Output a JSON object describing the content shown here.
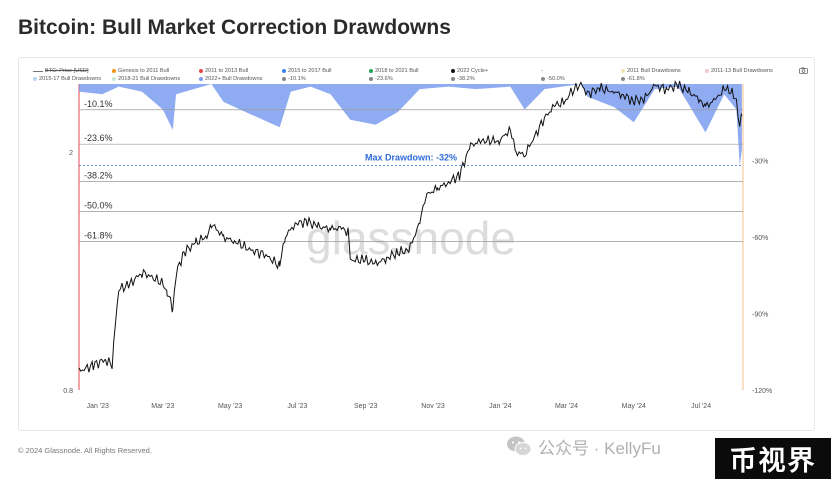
{
  "title": "Bitcoin: Bull Market Correction Drawdowns",
  "legend": [
    {
      "label": "BTC: Price [USD]",
      "color": "#777777",
      "kind": "line",
      "struck": true
    },
    {
      "label": "Genesis to 2011 Bull",
      "color": "#f7931a",
      "kind": "dot"
    },
    {
      "label": "2011 to 2013 Bull",
      "color": "#e8474c",
      "kind": "dot"
    },
    {
      "label": "2015 to 2017 Bull",
      "color": "#3b82f6",
      "kind": "dot"
    },
    {
      "label": "2018 to 2021 Bull",
      "color": "#22a35a",
      "kind": "dot"
    },
    {
      "label": "2022 Cycle+",
      "color": "#111111",
      "kind": "dot"
    },
    {
      "label": "-",
      "color": "#cccccc",
      "kind": "text"
    },
    {
      "label": "2011 Bull Drawdowns",
      "color": "#f6e0b8",
      "kind": "dot"
    },
    {
      "label": "2011-13 Bull Drawdowns",
      "color": "#f5c6cc",
      "kind": "dot"
    },
    {
      "label": "2015-17 Bull Drawdowns",
      "color": "#bcd4f7",
      "kind": "dot"
    },
    {
      "label": "2018-21 Bull Drawdowns",
      "color": "#c9e9d3",
      "kind": "dot"
    },
    {
      "label": "2022+ Bull Drawdowns",
      "color": "#7b9cf0",
      "kind": "dot"
    },
    {
      "label": "-10.1%",
      "color": "#888888",
      "kind": "dot"
    },
    {
      "label": "-23.6%",
      "color": "#888888",
      "kind": "dot"
    },
    {
      "label": "-38.2%",
      "color": "#888888",
      "kind": "dot"
    },
    {
      "label": "-50.0%",
      "color": "#888888",
      "kind": "dot"
    },
    {
      "label": "-61.8%",
      "color": "#888888",
      "kind": "dot"
    },
    {
      "label": "-",
      "color": "#cccccc",
      "kind": "text"
    }
  ],
  "chart_data": {
    "type": "line",
    "title": "Bitcoin: Bull Market Correction Drawdowns",
    "watermark": "glassnode",
    "x_axis": {
      "ticks": [
        "Jan '23",
        "Mar '23",
        "May '23",
        "Jul '23",
        "Sep '23",
        "Nov '23",
        "Jan '24",
        "Mar '24",
        "May '24",
        "Jul '24"
      ],
      "range": [
        "2022-12-15",
        "2024-08-08"
      ]
    },
    "y_left": {
      "scale": "log",
      "ticks": [
        "2",
        "0.8"
      ],
      "range": [
        0.8,
        2.6
      ]
    },
    "y_right": {
      "ticks": [
        "-30%",
        "-60%",
        "-90%",
        "-120%"
      ],
      "range": [
        0,
        -120
      ]
    },
    "fib_levels": [
      {
        "label": "-10.1%",
        "value": -10.1
      },
      {
        "label": "-23.6%",
        "value": -23.6
      },
      {
        "label": "-38.2%",
        "value": -38.2
      },
      {
        "label": "-50.0%",
        "value": -50.0
      },
      {
        "label": "-61.8%",
        "value": -61.8
      }
    ],
    "annotation": {
      "text": "Max Drawdown: -32%",
      "value": -32
    },
    "series": [
      {
        "name": "2022 Cycle+",
        "color": "#111111",
        "points": [
          [
            "2022-12-15",
            0.86
          ],
          [
            "2022-12-28",
            0.88
          ],
          [
            "2023-01-08",
            0.9
          ],
          [
            "2023-01-14",
            0.88
          ],
          [
            "2023-01-20",
            1.18
          ],
          [
            "2023-01-30",
            1.2
          ],
          [
            "2023-02-10",
            1.26
          ],
          [
            "2023-02-28",
            1.21
          ],
          [
            "2023-03-05",
            1.17
          ],
          [
            "2023-03-10",
            1.09
          ],
          [
            "2023-03-13",
            1.25
          ],
          [
            "2023-03-20",
            1.36
          ],
          [
            "2023-03-31",
            1.41
          ],
          [
            "2023-04-10",
            1.45
          ],
          [
            "2023-04-14",
            1.52
          ],
          [
            "2023-04-25",
            1.44
          ],
          [
            "2023-05-05",
            1.42
          ],
          [
            "2023-05-20",
            1.37
          ],
          [
            "2023-06-01",
            1.35
          ],
          [
            "2023-06-15",
            1.29
          ],
          [
            "2023-06-20",
            1.45
          ],
          [
            "2023-06-30",
            1.52
          ],
          [
            "2023-07-10",
            1.53
          ],
          [
            "2023-07-20",
            1.5
          ],
          [
            "2023-07-31",
            1.49
          ],
          [
            "2023-08-10",
            1.49
          ],
          [
            "2023-08-16",
            1.47
          ],
          [
            "2023-08-18",
            1.32
          ],
          [
            "2023-08-31",
            1.32
          ],
          [
            "2023-09-10",
            1.3
          ],
          [
            "2023-09-20",
            1.33
          ],
          [
            "2023-09-30",
            1.36
          ],
          [
            "2023-10-10",
            1.37
          ],
          [
            "2023-10-20",
            1.52
          ],
          [
            "2023-10-25",
            1.69
          ],
          [
            "2023-11-05",
            1.74
          ],
          [
            "2023-11-15",
            1.78
          ],
          [
            "2023-11-25",
            1.83
          ],
          [
            "2023-12-05",
            2.05
          ],
          [
            "2023-12-15",
            2.09
          ],
          [
            "2023-12-31",
            2.09
          ],
          [
            "2024-01-10",
            2.18
          ],
          [
            "2024-01-15",
            2.0
          ],
          [
            "2024-01-23",
            1.98
          ],
          [
            "2024-02-01",
            2.12
          ],
          [
            "2024-02-10",
            2.28
          ],
          [
            "2024-02-20",
            2.4
          ],
          [
            "2024-02-28",
            2.42
          ],
          [
            "2024-03-05",
            2.52
          ],
          [
            "2024-03-14",
            2.6
          ],
          [
            "2024-03-20",
            2.5
          ],
          [
            "2024-03-31",
            2.56
          ],
          [
            "2024-04-13",
            2.52
          ],
          [
            "2024-04-20",
            2.5
          ],
          [
            "2024-04-30",
            2.44
          ],
          [
            "2024-05-10",
            2.45
          ],
          [
            "2024-05-20",
            2.58
          ],
          [
            "2024-05-31",
            2.55
          ],
          [
            "2024-06-10",
            2.59
          ],
          [
            "2024-06-20",
            2.52
          ],
          [
            "2024-06-30",
            2.45
          ],
          [
            "2024-07-05",
            2.38
          ],
          [
            "2024-07-15",
            2.46
          ],
          [
            "2024-07-22",
            2.55
          ],
          [
            "2024-07-29",
            2.53
          ],
          [
            "2024-08-02",
            2.44
          ],
          [
            "2024-08-05",
            2.2
          ],
          [
            "2024-08-07",
            2.3
          ]
        ]
      },
      {
        "name": "2022+ Bull Drawdowns",
        "color": "#7b9cf0",
        "points": [
          [
            "2022-12-15",
            -3
          ],
          [
            "2023-01-05",
            -4
          ],
          [
            "2023-01-20",
            -1
          ],
          [
            "2023-02-10",
            -3
          ],
          [
            "2023-03-01",
            -10
          ],
          [
            "2023-03-10",
            -18
          ],
          [
            "2023-03-13",
            -4
          ],
          [
            "2023-04-14",
            0
          ],
          [
            "2023-04-25",
            -7
          ],
          [
            "2023-05-15",
            -11
          ],
          [
            "2023-06-15",
            -17
          ],
          [
            "2023-06-25",
            -3
          ],
          [
            "2023-07-13",
            -1
          ],
          [
            "2023-07-31",
            -4
          ],
          [
            "2023-08-18",
            -14
          ],
          [
            "2023-09-10",
            -16
          ],
          [
            "2023-09-30",
            -11
          ],
          [
            "2023-10-20",
            -2
          ],
          [
            "2023-11-15",
            -1
          ],
          [
            "2023-12-10",
            -2
          ],
          [
            "2024-01-10",
            -1
          ],
          [
            "2024-01-23",
            -10
          ],
          [
            "2024-02-10",
            -2
          ],
          [
            "2024-03-14",
            0
          ],
          [
            "2024-03-20",
            -5
          ],
          [
            "2024-04-13",
            -9
          ],
          [
            "2024-05-01",
            -15
          ],
          [
            "2024-05-20",
            -2
          ],
          [
            "2024-06-10",
            -1
          ],
          [
            "2024-07-05",
            -19
          ],
          [
            "2024-07-22",
            -4
          ],
          [
            "2024-08-02",
            -10
          ],
          [
            "2024-08-05",
            -32
          ],
          [
            "2024-08-07",
            -26
          ]
        ]
      }
    ]
  },
  "footer": {
    "copyright": "© 2024 Glassnode. All Rights Reserved."
  },
  "wechat": {
    "text": "公众号 · KellyFu"
  },
  "brand_badge": {
    "text": "币视界"
  }
}
